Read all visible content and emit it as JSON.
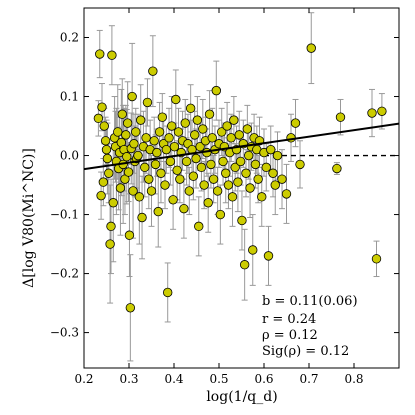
{
  "chart_data": {
    "type": "scatter",
    "xlabel": "log(1/q_d)",
    "ylabel": "Δ[log V80(Mi^NC)]",
    "xlim": [
      0.2,
      0.9
    ],
    "ylim": [
      -0.36,
      0.25
    ],
    "x_ticks": [
      "0.2",
      "0.3",
      "0.4",
      "0.5",
      "0.6",
      "0.7",
      "0.8"
    ],
    "y_ticks": [
      "−0.3",
      "−0.2",
      "−0.1",
      "0.0",
      "0.1",
      "0.2"
    ],
    "x_tick_values": [
      0.2,
      0.3,
      0.4,
      0.5,
      0.6,
      0.7,
      0.8
    ],
    "y_tick_values": [
      -0.3,
      -0.2,
      -0.1,
      0.0,
      0.1,
      0.2
    ],
    "marker_color": "#cccc00",
    "fit_line": {
      "intercept": -0.045,
      "slope": 0.11,
      "x_range": [
        0.2,
        0.9
      ]
    },
    "zero_line": {
      "y": 0.0,
      "style": "dashed",
      "x_range": [
        0.6,
        0.9
      ]
    },
    "annotations": [
      "b = 0.11(0.06)",
      "r = 0.24",
      "ρ = 0.12",
      "Sig(ρ) = 0.12"
    ],
    "points": [
      {
        "x": 0.235,
        "y": 0.172,
        "e": 0.04
      },
      {
        "x": 0.262,
        "y": 0.17,
        "e": 0.05
      },
      {
        "x": 0.232,
        "y": 0.063,
        "e": 0.03
      },
      {
        "x": 0.24,
        "y": 0.082,
        "e": 0.04
      },
      {
        "x": 0.245,
        "y": 0.05,
        "e": 0.03
      },
      {
        "x": 0.248,
        "y": 0.025,
        "e": 0.04
      },
      {
        "x": 0.25,
        "y": 0.01,
        "e": 0.05
      },
      {
        "x": 0.252,
        "y": -0.005,
        "e": 0.06
      },
      {
        "x": 0.255,
        "y": -0.03,
        "e": 0.05
      },
      {
        "x": 0.238,
        "y": -0.068,
        "e": 0.04
      },
      {
        "x": 0.243,
        "y": -0.045,
        "e": 0.04
      },
      {
        "x": 0.258,
        "y": -0.15,
        "e": 0.1
      },
      {
        "x": 0.26,
        "y": -0.12,
        "e": 0.08
      },
      {
        "x": 0.265,
        "y": -0.08,
        "e": 0.1
      },
      {
        "x": 0.268,
        "y": 0.03,
        "e": 0.07
      },
      {
        "x": 0.27,
        "y": 0.015,
        "e": 0.06
      },
      {
        "x": 0.272,
        "y": -0.01,
        "e": 0.09
      },
      {
        "x": 0.275,
        "y": 0.04,
        "e": 0.08
      },
      {
        "x": 0.277,
        "y": -0.022,
        "e": 0.07
      },
      {
        "x": 0.279,
        "y": 0.005,
        "e": 0.06
      },
      {
        "x": 0.281,
        "y": -0.055,
        "e": 0.08
      },
      {
        "x": 0.283,
        "y": 0.022,
        "e": 0.09
      },
      {
        "x": 0.285,
        "y": 0.07,
        "e": 0.06
      },
      {
        "x": 0.287,
        "y": -0.015,
        "e": 0.1
      },
      {
        "x": 0.289,
        "y": 0.01,
        "e": 0.07
      },
      {
        "x": 0.291,
        "y": -0.04,
        "e": 0.06
      },
      {
        "x": 0.293,
        "y": 0.035,
        "e": 0.05
      },
      {
        "x": 0.295,
        "y": -0.002,
        "e": 0.08
      },
      {
        "x": 0.297,
        "y": 0.055,
        "e": 0.07
      },
      {
        "x": 0.299,
        "y": -0.028,
        "e": 0.05
      },
      {
        "x": 0.301,
        "y": -0.135,
        "e": 0.07
      },
      {
        "x": 0.303,
        "y": -0.258,
        "e": 0.09
      },
      {
        "x": 0.305,
        "y": 0.012,
        "e": 0.06
      },
      {
        "x": 0.307,
        "y": 0.1,
        "e": 0.09
      },
      {
        "x": 0.309,
        "y": -0.06,
        "e": 0.08
      },
      {
        "x": 0.311,
        "y": 0.02,
        "e": 0.05
      },
      {
        "x": 0.313,
        "y": -0.01,
        "e": 0.06
      },
      {
        "x": 0.315,
        "y": 0.04,
        "e": 0.04
      },
      {
        "x": 0.317,
        "y": -0.005,
        "e": 0.05
      },
      {
        "x": 0.32,
        "y": 0.0,
        "e": 0.07
      },
      {
        "x": 0.323,
        "y": -0.07,
        "e": 0.08
      },
      {
        "x": 0.326,
        "y": 0.06,
        "e": 0.06
      },
      {
        "x": 0.329,
        "y": -0.105,
        "e": 0.07
      },
      {
        "x": 0.332,
        "y": 0.015,
        "e": 0.06
      },
      {
        "x": 0.335,
        "y": -0.02,
        "e": 0.05
      },
      {
        "x": 0.338,
        "y": 0.03,
        "e": 0.06
      },
      {
        "x": 0.341,
        "y": 0.09,
        "e": 0.04
      },
      {
        "x": 0.344,
        "y": -0.04,
        "e": 0.05
      },
      {
        "x": 0.347,
        "y": 0.01,
        "e": 0.05
      },
      {
        "x": 0.35,
        "y": -0.06,
        "e": 0.06
      },
      {
        "x": 0.353,
        "y": 0.143,
        "e": 0.06
      },
      {
        "x": 0.356,
        "y": 0.025,
        "e": 0.04
      },
      {
        "x": 0.359,
        "y": -0.015,
        "e": 0.05
      },
      {
        "x": 0.362,
        "y": 0.005,
        "e": 0.04
      },
      {
        "x": 0.365,
        "y": -0.095,
        "e": 0.06
      },
      {
        "x": 0.368,
        "y": 0.04,
        "e": 0.05
      },
      {
        "x": 0.371,
        "y": -0.03,
        "e": 0.05
      },
      {
        "x": 0.374,
        "y": 0.065,
        "e": 0.04
      },
      {
        "x": 0.377,
        "y": 0.02,
        "e": 0.05
      },
      {
        "x": 0.38,
        "y": -0.05,
        "e": 0.04
      },
      {
        "x": 0.383,
        "y": 0.01,
        "e": 0.04
      },
      {
        "x": 0.386,
        "y": -0.232,
        "e": 0.05
      },
      {
        "x": 0.389,
        "y": 0.03,
        "e": 0.05
      },
      {
        "x": 0.392,
        "y": -0.01,
        "e": 0.04
      },
      {
        "x": 0.395,
        "y": 0.05,
        "e": 0.05
      },
      {
        "x": 0.398,
        "y": -0.075,
        "e": 0.05
      },
      {
        "x": 0.401,
        "y": 0.015,
        "e": 0.04
      },
      {
        "x": 0.404,
        "y": 0.095,
        "e": 0.05
      },
      {
        "x": 0.407,
        "y": -0.025,
        "e": 0.05
      },
      {
        "x": 0.41,
        "y": 0.04,
        "e": 0.04
      },
      {
        "x": 0.413,
        "y": -0.04,
        "e": 0.04
      },
      {
        "x": 0.416,
        "y": 0.005,
        "e": 0.04
      },
      {
        "x": 0.419,
        "y": 0.025,
        "e": 0.05
      },
      {
        "x": 0.422,
        "y": -0.09,
        "e": 0.05
      },
      {
        "x": 0.425,
        "y": 0.055,
        "e": 0.04
      },
      {
        "x": 0.428,
        "y": -0.01,
        "e": 0.04
      },
      {
        "x": 0.431,
        "y": 0.02,
        "e": 0.05
      },
      {
        "x": 0.434,
        "y": -0.06,
        "e": 0.04
      },
      {
        "x": 0.437,
        "y": 0.08,
        "e": 0.04
      },
      {
        "x": 0.44,
        "y": 0.01,
        "e": 0.05
      },
      {
        "x": 0.443,
        "y": -0.035,
        "e": 0.04
      },
      {
        "x": 0.446,
        "y": 0.035,
        "e": 0.04
      },
      {
        "x": 0.449,
        "y": -0.005,
        "e": 0.05
      },
      {
        "x": 0.452,
        "y": 0.06,
        "e": 0.04
      },
      {
        "x": 0.455,
        "y": -0.12,
        "e": 0.05
      },
      {
        "x": 0.458,
        "y": 0.015,
        "e": 0.04
      },
      {
        "x": 0.461,
        "y": -0.02,
        "e": 0.04
      },
      {
        "x": 0.464,
        "y": 0.045,
        "e": 0.05
      },
      {
        "x": 0.467,
        "y": -0.05,
        "e": 0.04
      },
      {
        "x": 0.47,
        "y": 0.025,
        "e": 0.04
      },
      {
        "x": 0.473,
        "y": 0.005,
        "e": 0.04
      },
      {
        "x": 0.476,
        "y": -0.08,
        "e": 0.05
      },
      {
        "x": 0.479,
        "y": 0.07,
        "e": 0.04
      },
      {
        "x": 0.482,
        "y": -0.015,
        "e": 0.04
      },
      {
        "x": 0.485,
        "y": 0.03,
        "e": 0.05
      },
      {
        "x": 0.488,
        "y": -0.04,
        "e": 0.04
      },
      {
        "x": 0.491,
        "y": 0.01,
        "e": 0.04
      },
      {
        "x": 0.494,
        "y": 0.11,
        "e": 0.05
      },
      {
        "x": 0.497,
        "y": -0.06,
        "e": 0.04
      },
      {
        "x": 0.5,
        "y": 0.02,
        "e": 0.04
      },
      {
        "x": 0.503,
        "y": -0.1,
        "e": 0.05
      },
      {
        "x": 0.506,
        "y": 0.04,
        "e": 0.04
      },
      {
        "x": 0.509,
        "y": -0.01,
        "e": 0.04
      },
      {
        "x": 0.512,
        "y": 0.015,
        "e": 0.04
      },
      {
        "x": 0.515,
        "y": -0.03,
        "e": 0.05
      },
      {
        "x": 0.518,
        "y": 0.05,
        "e": 0.04
      },
      {
        "x": 0.521,
        "y": -0.05,
        "e": 0.04
      },
      {
        "x": 0.524,
        "y": 0.005,
        "e": 0.04
      },
      {
        "x": 0.527,
        "y": 0.03,
        "e": 0.04
      },
      {
        "x": 0.53,
        "y": -0.07,
        "e": 0.05
      },
      {
        "x": 0.533,
        "y": 0.06,
        "e": 0.04
      },
      {
        "x": 0.536,
        "y": -0.02,
        "e": 0.04
      },
      {
        "x": 0.539,
        "y": 0.01,
        "e": 0.04
      },
      {
        "x": 0.542,
        "y": -0.045,
        "e": 0.05
      },
      {
        "x": 0.545,
        "y": 0.035,
        "e": 0.04
      },
      {
        "x": 0.548,
        "y": -0.01,
        "e": 0.04
      },
      {
        "x": 0.551,
        "y": -0.11,
        "e": 0.05
      },
      {
        "x": 0.554,
        "y": 0.02,
        "e": 0.04
      },
      {
        "x": 0.557,
        "y": -0.185,
        "e": 0.06
      },
      {
        "x": 0.56,
        "y": -0.03,
        "e": 0.04
      },
      {
        "x": 0.563,
        "y": 0.045,
        "e": 0.04
      },
      {
        "x": 0.566,
        "y": 0.0,
        "e": 0.04
      },
      {
        "x": 0.569,
        "y": -0.055,
        "e": 0.05
      },
      {
        "x": 0.572,
        "y": 0.015,
        "e": 0.04
      },
      {
        "x": 0.575,
        "y": -0.16,
        "e": 0.06
      },
      {
        "x": 0.578,
        "y": 0.03,
        "e": 0.04
      },
      {
        "x": 0.581,
        "y": -0.015,
        "e": 0.04
      },
      {
        "x": 0.584,
        "y": 0.01,
        "e": 0.04
      },
      {
        "x": 0.587,
        "y": -0.04,
        "e": 0.04
      },
      {
        "x": 0.59,
        "y": 0.025,
        "e": 0.04
      },
      {
        "x": 0.595,
        "y": -0.07,
        "e": 0.05
      },
      {
        "x": 0.6,
        "y": 0.005,
        "e": 0.04
      },
      {
        "x": 0.605,
        "y": -0.02,
        "e": 0.04
      },
      {
        "x": 0.61,
        "y": -0.17,
        "e": 0.05
      },
      {
        "x": 0.615,
        "y": 0.01,
        "e": 0.04
      },
      {
        "x": 0.62,
        "y": -0.03,
        "e": 0.04
      },
      {
        "x": 0.625,
        "y": -0.05,
        "e": 0.05
      },
      {
        "x": 0.63,
        "y": 0.0,
        "e": 0.04
      },
      {
        "x": 0.64,
        "y": -0.04,
        "e": 0.05
      },
      {
        "x": 0.65,
        "y": -0.065,
        "e": 0.05
      },
      {
        "x": 0.66,
        "y": 0.03,
        "e": 0.04
      },
      {
        "x": 0.67,
        "y": 0.055,
        "e": 0.04
      },
      {
        "x": 0.68,
        "y": -0.015,
        "e": 0.04
      },
      {
        "x": 0.705,
        "y": 0.182,
        "e": 0.06
      },
      {
        "x": 0.762,
        "y": -0.022,
        "e": 0.01
      },
      {
        "x": 0.77,
        "y": 0.065,
        "e": 0.03
      },
      {
        "x": 0.84,
        "y": 0.072,
        "e": 0.04
      },
      {
        "x": 0.85,
        "y": -0.175,
        "e": 0.03
      },
      {
        "x": 0.862,
        "y": 0.075,
        "e": 0.03
      }
    ]
  }
}
